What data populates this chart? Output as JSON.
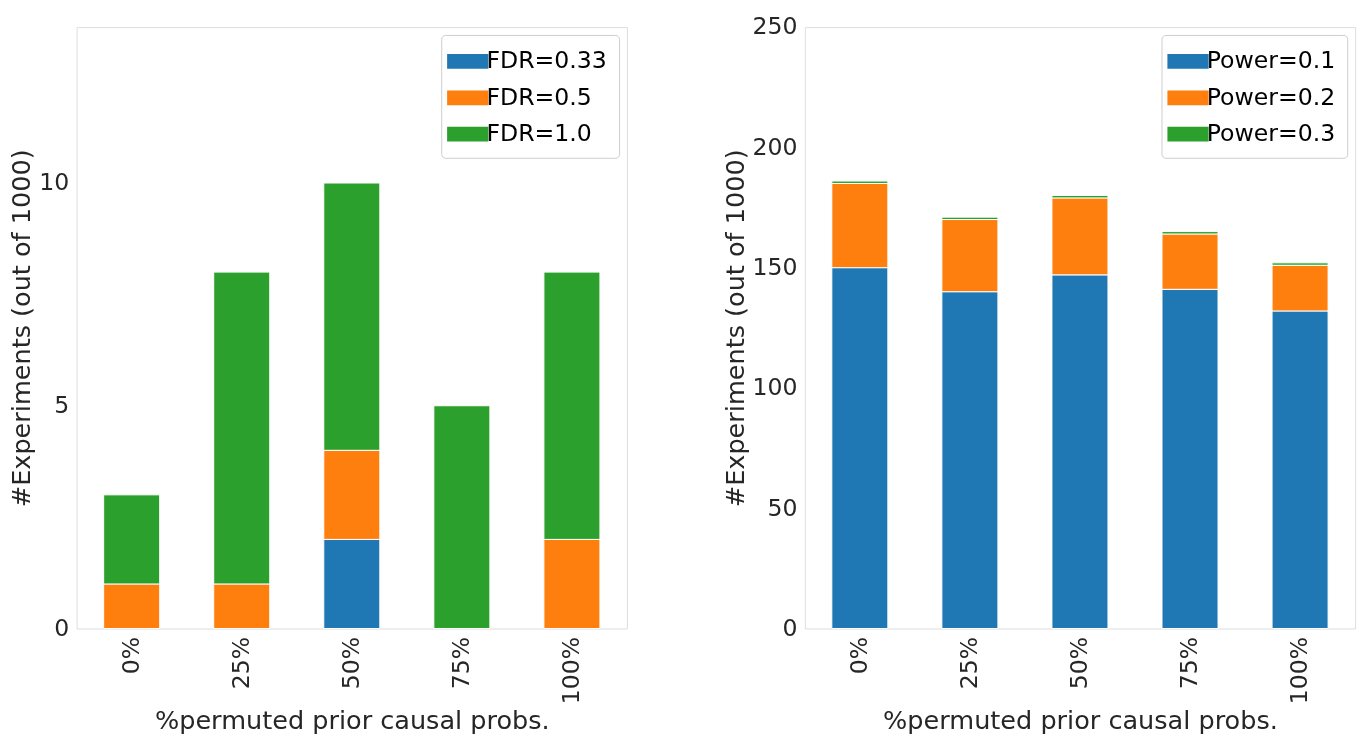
{
  "chart_data": [
    {
      "type": "bar",
      "stacked": true,
      "xlabel": "%permuted prior causal probs.",
      "ylabel": "#Experiments (out of 1000)",
      "categories": [
        "0%",
        "25%",
        "50%",
        "75%",
        "100%"
      ],
      "ylim": [
        0,
        13.5
      ],
      "yticks": [
        0,
        5,
        10
      ],
      "grid": false,
      "legend": "top right",
      "series": [
        {
          "name": "FDR=0.33",
          "color": "#1f77b4",
          "values": [
            0,
            0,
            2,
            0,
            0
          ]
        },
        {
          "name": "FDR=0.5",
          "color": "#ff7f0e",
          "values": [
            1,
            1,
            2,
            0,
            2
          ]
        },
        {
          "name": "FDR=1.0",
          "color": "#2ca02c",
          "values": [
            2,
            7,
            6,
            5,
            6
          ]
        }
      ]
    },
    {
      "type": "bar",
      "stacked": true,
      "xlabel": "%permuted prior causal probs.",
      "ylabel": "#Experiments (out of 1000)",
      "categories": [
        "0%",
        "25%",
        "50%",
        "75%",
        "100%"
      ],
      "ylim": [
        0,
        250
      ],
      "yticks": [
        0,
        50,
        100,
        150,
        200,
        250
      ],
      "grid": false,
      "legend": "top right",
      "series": [
        {
          "name": "Power=0.1",
          "color": "#1f77b4",
          "values": [
            150,
            140,
            147,
            141,
            132
          ]
        },
        {
          "name": "Power=0.2",
          "color": "#ff7f0e",
          "values": [
            35,
            30,
            32,
            23,
            19
          ]
        },
        {
          "name": "Power=0.3",
          "color": "#2ca02c",
          "values": [
            1,
            1,
            1,
            1,
            1
          ]
        }
      ]
    }
  ]
}
